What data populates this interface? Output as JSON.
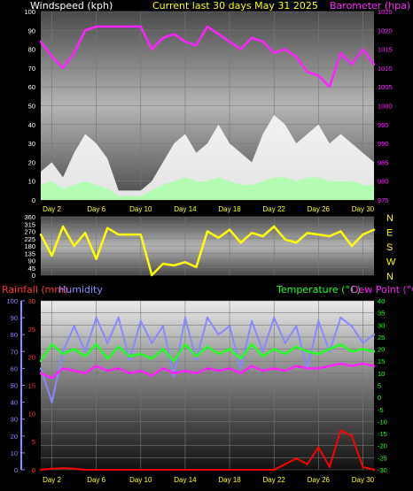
{
  "header": {
    "left": "Windspeed (kph)",
    "center": "Current last 30 days May 31 2025",
    "right": "Barometer (hpa)"
  },
  "footer": {
    "rain": "Rainfall (mm)",
    "humidity": "Humidity",
    "temperature": "Temperature (°C)",
    "dewpoint": "Dew Point (°C)"
  },
  "x_labels": [
    "Day 2",
    "Day 6",
    "Day 10",
    "Day 14",
    "Day 18",
    "Day 22",
    "Day 26",
    "Day 30"
  ],
  "colors": {
    "wind": "#ffffff",
    "gust": "#ffffff",
    "avg_wind": "#aaffaa",
    "barometer": "#ff22ff",
    "direction": "#ffff00",
    "rain": "#ff0000",
    "humidity": "#8888ff",
    "temperature": "#22ff22",
    "dewpoint": "#ff22ff"
  },
  "chart_data": [
    {
      "type": "area",
      "ylim": [
        0,
        100
      ],
      "yticks": [
        0,
        10,
        20,
        30,
        40,
        50,
        60,
        70,
        80,
        90,
        100
      ],
      "y2lim": [
        975,
        1025
      ],
      "y2ticks": [
        975,
        980,
        985,
        990,
        995,
        1000,
        1005,
        1010,
        1015,
        1020,
        1025
      ],
      "x": [
        1,
        2,
        3,
        4,
        5,
        6,
        7,
        8,
        9,
        10,
        11,
        12,
        13,
        14,
        15,
        16,
        17,
        18,
        19,
        20,
        21,
        22,
        23,
        24,
        25,
        26,
        27,
        28,
        29,
        30,
        31
      ],
      "series": [
        {
          "key": "gust",
          "values": [
            15,
            20,
            12,
            25,
            35,
            30,
            22,
            5,
            5,
            5,
            10,
            20,
            30,
            35,
            25,
            30,
            40,
            30,
            25,
            20,
            35,
            45,
            40,
            30,
            35,
            40,
            30,
            35,
            30,
            25,
            20
          ]
        },
        {
          "key": "avg_wind",
          "values": [
            8,
            10,
            6,
            8,
            10,
            8,
            6,
            2,
            2,
            2,
            5,
            8,
            10,
            12,
            10,
            10,
            12,
            10,
            8,
            8,
            10,
            12,
            12,
            10,
            12,
            12,
            10,
            10,
            10,
            8,
            8
          ]
        },
        {
          "key": "barometer",
          "values": [
            1017,
            1013,
            1010,
            1014,
            1020,
            1021,
            1021,
            1021,
            1021,
            1021,
            1015,
            1018,
            1019,
            1017,
            1016,
            1021,
            1019,
            1017,
            1015,
            1018,
            1017,
            1014,
            1015,
            1013,
            1009,
            1008,
            1005,
            1014,
            1011,
            1015,
            1011
          ]
        }
      ]
    },
    {
      "type": "line",
      "ylim": [
        0,
        360
      ],
      "yticks": [
        0,
        45,
        90,
        135,
        180,
        225,
        270,
        315,
        360
      ],
      "compass": [
        "N",
        "W",
        "S",
        "E",
        "N"
      ],
      "x": [
        1,
        2,
        3,
        4,
        5,
        6,
        7,
        8,
        9,
        10,
        11,
        12,
        13,
        14,
        15,
        16,
        17,
        18,
        19,
        20,
        21,
        22,
        23,
        24,
        25,
        26,
        27,
        28,
        29,
        30,
        31
      ],
      "series": [
        {
          "key": "direction",
          "values": [
            250,
            120,
            300,
            180,
            260,
            100,
            290,
            250,
            250,
            250,
            0,
            70,
            60,
            80,
            50,
            270,
            230,
            280,
            200,
            260,
            240,
            300,
            220,
            200,
            260,
            250,
            240,
            270,
            180,
            250,
            280
          ]
        }
      ]
    },
    {
      "type": "line",
      "ylim": [
        0,
        30
      ],
      "yticks": [
        0,
        5,
        10,
        15,
        20,
        25,
        30
      ],
      "y2lim": [
        -30,
        40
      ],
      "y2ticks": [
        -30,
        -25,
        -20,
        -15,
        -10,
        -5,
        0,
        5,
        10,
        15,
        20,
        25,
        30,
        35,
        40
      ],
      "humidity_ticks": [
        0,
        10,
        20,
        30,
        40,
        50,
        60,
        70,
        80,
        90,
        100
      ],
      "x": [
        1,
        2,
        3,
        4,
        5,
        6,
        7,
        8,
        9,
        10,
        11,
        12,
        13,
        14,
        15,
        16,
        17,
        18,
        19,
        20,
        21,
        22,
        23,
        24,
        25,
        26,
        27,
        28,
        29,
        30,
        31
      ],
      "series": [
        {
          "key": "humidity",
          "values": [
            60,
            40,
            70,
            85,
            70,
            90,
            75,
            90,
            65,
            88,
            75,
            85,
            55,
            90,
            65,
            90,
            80,
            85,
            60,
            88,
            70,
            90,
            75,
            85,
            60,
            88,
            70,
            90,
            85,
            75,
            80
          ]
        },
        {
          "key": "temperature",
          "values": [
            15,
            22,
            18,
            20,
            17,
            22,
            16,
            21,
            17,
            18,
            16,
            20,
            15,
            22,
            17,
            21,
            18,
            20,
            16,
            22,
            17,
            20,
            18,
            21,
            19,
            18,
            20,
            22,
            19,
            20,
            19
          ]
        },
        {
          "key": "dewpoint",
          "values": [
            10,
            8,
            12,
            11,
            10,
            13,
            11,
            12,
            10,
            11,
            9,
            12,
            10,
            11,
            10,
            12,
            11,
            12,
            10,
            13,
            11,
            12,
            11,
            13,
            12,
            12,
            13,
            14,
            13,
            14,
            13
          ]
        },
        {
          "key": "rain",
          "values": [
            0,
            0.2,
            0.3,
            0.2,
            0,
            0,
            0,
            0,
            0,
            0,
            0,
            0,
            0,
            0,
            0,
            0,
            0,
            0,
            0,
            0,
            0,
            0,
            1,
            2,
            1,
            4,
            0.5,
            7,
            6,
            0.5,
            0
          ]
        }
      ]
    }
  ]
}
